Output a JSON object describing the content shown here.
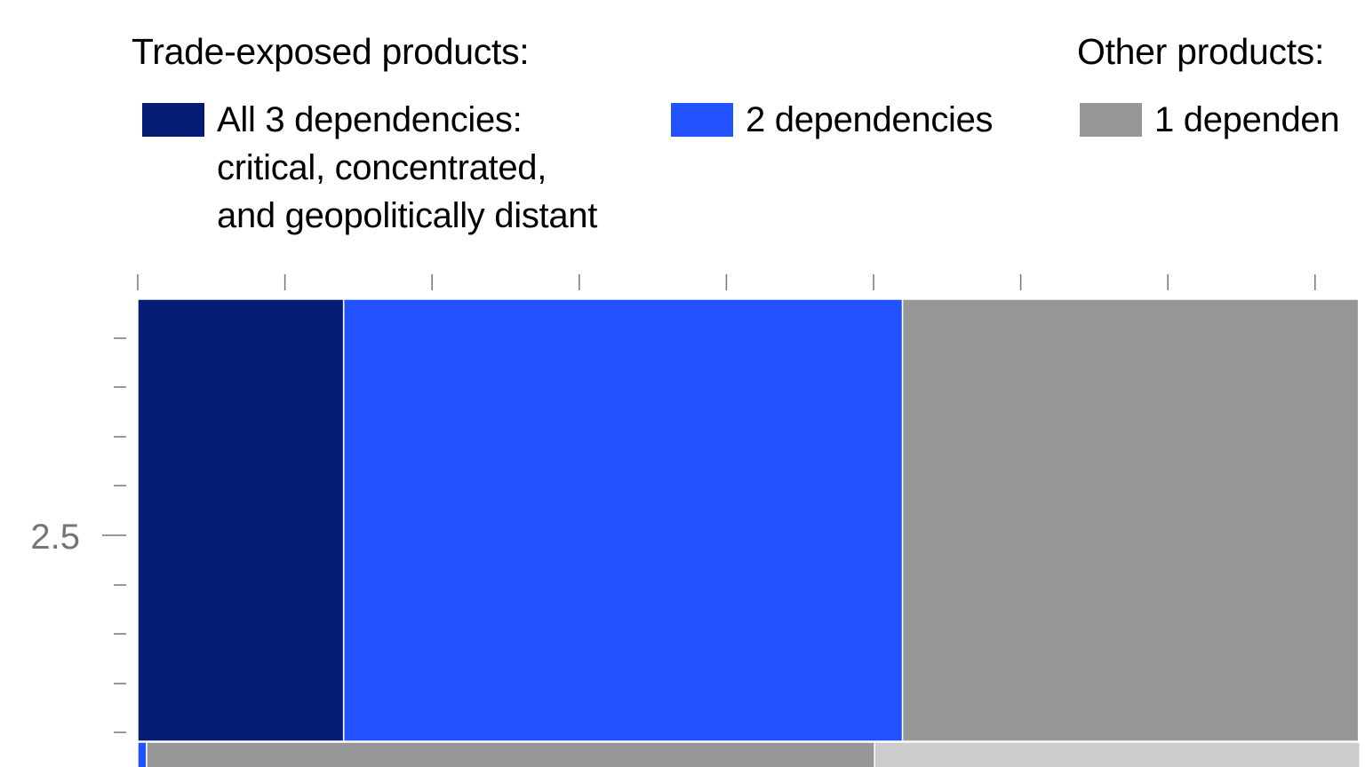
{
  "legend": {
    "group_trade": "Trade-exposed products:",
    "group_other": "Other products:",
    "items": [
      {
        "name": "legend-all-3-dependencies",
        "lines": [
          "All 3 dependencies:",
          "critical, concentrated,",
          "and geopolitically distant"
        ],
        "color": "#051c75"
      },
      {
        "name": "legend-2-dependencies",
        "lines": [
          "2 dependencies"
        ],
        "color": "#2251ff"
      },
      {
        "name": "legend-1-dependency",
        "lines": [
          "1 dependen"
        ],
        "color": "#969696"
      }
    ]
  },
  "chart_data": {
    "type": "bar",
    "orientation": "horizontal",
    "stacked": true,
    "y_tick_labels": [
      "2.5"
    ],
    "rows": [
      {
        "segments": [
          {
            "series": "All 3 dependencies",
            "value": 14,
            "color": "#051c75"
          },
          {
            "series": "2 dependencies",
            "value": 38,
            "color": "#2251ff"
          },
          {
            "series": "1 dependency",
            "value": 31,
            "color": "#969696"
          }
        ]
      },
      {
        "segments": [
          {
            "series": "2 dependencies",
            "value": 0.6,
            "color": "#2251ff"
          },
          {
            "series": "1 dependency",
            "value": 49.5,
            "color": "#969696"
          },
          {
            "series": "other",
            "value": 33,
            "color": "#cccccc"
          }
        ]
      }
    ]
  }
}
